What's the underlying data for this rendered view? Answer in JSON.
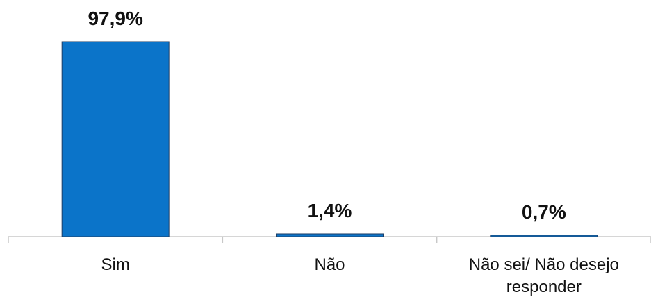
{
  "chart_data": {
    "type": "bar",
    "categories": [
      "Sim",
      "Não",
      "Não sei/ Não desejo responder"
    ],
    "values": [
      97.9,
      1.4,
      0.7
    ],
    "value_labels": [
      "97,9%",
      "1,4%",
      "0,7%"
    ],
    "color": "#0b74c9"
  }
}
